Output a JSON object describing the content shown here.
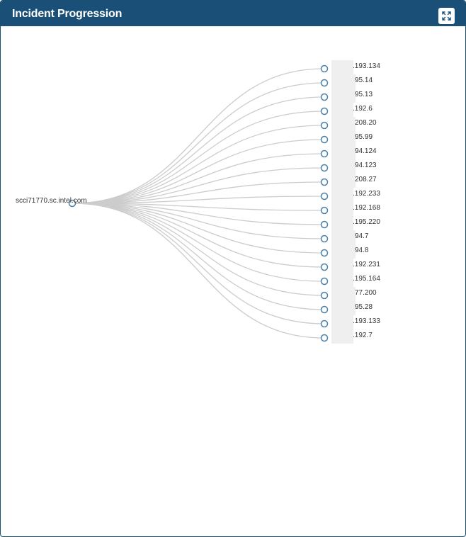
{
  "header": {
    "title": "Incident Progression",
    "expand_icon": "expand-icon"
  },
  "colors": {
    "header_bg": "#1a4f78",
    "link": "#cccccc",
    "node_stroke": "#4a7fa8"
  },
  "tree": {
    "root": {
      "label": "scci71770.sc.intel.com"
    },
    "children": [
      {
        "label": ".193.134"
      },
      {
        "label": "95.14"
      },
      {
        "label": "95.13"
      },
      {
        "label": ".192.6"
      },
      {
        "label": "208.20"
      },
      {
        "label": "95.99"
      },
      {
        "label": "94.124"
      },
      {
        "label": "94.123"
      },
      {
        "label": "208.27"
      },
      {
        "label": ".192.233"
      },
      {
        "label": ".192.168"
      },
      {
        "label": ".195.220"
      },
      {
        "label": "94.7"
      },
      {
        "label": "94.8"
      },
      {
        "label": ".192.231"
      },
      {
        "label": ".195.164"
      },
      {
        "label": "77.200"
      },
      {
        "label": "95.28"
      },
      {
        "label": ".193.133"
      },
      {
        "label": ".192.7"
      }
    ]
  }
}
